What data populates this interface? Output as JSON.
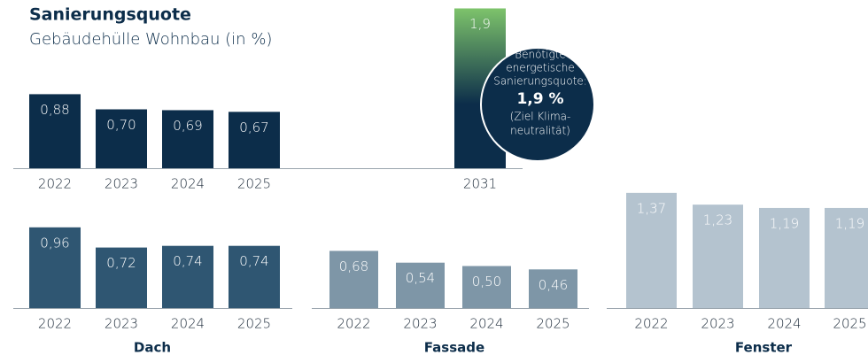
{
  "chart_data": [
    {
      "type": "bar",
      "title": "Sanierungsquote",
      "subtitle": "Gebäudehülle Wohnbau (in %)",
      "categories": [
        "2022",
        "2023",
        "2024",
        "2025",
        "2031"
      ],
      "values": [
        0.88,
        0.7,
        0.69,
        0.67,
        1.9
      ],
      "value_labels": [
        "0,88",
        "0,70",
        "0,69",
        "0,67",
        "1,9"
      ],
      "colors": [
        "#0c2d4a",
        "#0c2d4a",
        "#0c2d4a",
        "#0c2d4a",
        "#7dc36b"
      ],
      "ylim": [
        0,
        2
      ],
      "annotation": [
        "Benötigte",
        "energetische",
        "Sanierungsquote:",
        "1,9 %",
        "(Ziel Klima-",
        "neutralität)"
      ]
    },
    {
      "type": "bar",
      "title": "Dach",
      "categories": [
        "2022",
        "2023",
        "2024",
        "2025"
      ],
      "values": [
        0.96,
        0.72,
        0.74,
        0.74
      ],
      "value_labels": [
        "0,96",
        "0,72",
        "0,74",
        "0,74"
      ],
      "color": "#2f5672",
      "ylim": [
        0,
        2
      ]
    },
    {
      "type": "bar",
      "title": "Fassade",
      "categories": [
        "2022",
        "2023",
        "2024",
        "2025"
      ],
      "values": [
        0.68,
        0.54,
        0.5,
        0.46
      ],
      "value_labels": [
        "0,68",
        "0,54",
        "0,50",
        "0,46"
      ],
      "color": "#7e96a7",
      "ylim": [
        0,
        2
      ]
    },
    {
      "type": "bar",
      "title": "Fenster",
      "categories": [
        "2022",
        "2023",
        "2024",
        "2025"
      ],
      "values": [
        1.37,
        1.23,
        1.19,
        1.19
      ],
      "value_labels": [
        "1,37",
        "1,23",
        "1,19",
        "1,19"
      ],
      "color": "#b4c3cf",
      "ylim": [
        0,
        2
      ]
    }
  ]
}
